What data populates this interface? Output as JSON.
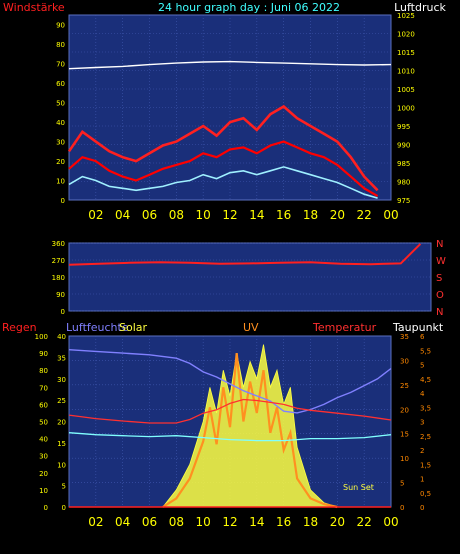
{
  "header": {
    "left_label": "Windstärke",
    "title": "24 hour graph day : Juni 06 2022",
    "right_label": "Luftdruck"
  },
  "colors": {
    "plot_bg": "#1a2f7a",
    "grid": "#4058b0",
    "wind": "#ff0000",
    "gust": "#ff2020",
    "wind_avg": "#9ff0ff",
    "pressure": "#ffffff",
    "direction": "#ff2020",
    "rain": "#ff2020",
    "humidity": "#8080ff",
    "temperature": "#ff3030",
    "dewpoint": "#80ffff",
    "solar": "#ffff40",
    "uv": "#ff9020",
    "axis_text": "#ffff00"
  },
  "chart_data": [
    {
      "type": "line",
      "name": "wind_pressure",
      "x_ticks": [
        "02",
        "04",
        "06",
        "08",
        "10",
        "12",
        "14",
        "16",
        "18",
        "20",
        "22",
        "00"
      ],
      "left_axis": {
        "label": "Windstärke",
        "ticks": [
          "0",
          "10",
          "20",
          "30",
          "40",
          "50",
          "60",
          "70",
          "80",
          "90"
        ],
        "ylim": [
          0,
          95
        ]
      },
      "right_axis": {
        "label": "Luftdruck",
        "ticks": [
          "975",
          "980",
          "985",
          "990",
          "995",
          "1000",
          "1005",
          "1010",
          "1015",
          "1020",
          "1025"
        ],
        "ylim": [
          975,
          1025
        ]
      },
      "series": [
        {
          "role": "pressure",
          "x": [
            0,
            2,
            4,
            6,
            8,
            10,
            12,
            14,
            16,
            18,
            20,
            22,
            24
          ],
          "values": [
            1010.5,
            1010.8,
            1011.1,
            1011.6,
            1012.0,
            1012.3,
            1012.4,
            1012.2,
            1012.0,
            1011.8,
            1011.6,
            1011.5,
            1011.6
          ]
        },
        {
          "role": "gust",
          "x": [
            0,
            1,
            2,
            3,
            4,
            5,
            6,
            7,
            8,
            9,
            10,
            11,
            12,
            13,
            14,
            15,
            16,
            17,
            18,
            19,
            20,
            21,
            22,
            23
          ],
          "values": [
            25,
            35,
            30,
            25,
            22,
            20,
            24,
            28,
            30,
            34,
            38,
            33,
            40,
            42,
            36,
            44,
            48,
            42,
            38,
            34,
            30,
            22,
            12,
            5
          ]
        },
        {
          "role": "wind",
          "x": [
            0,
            1,
            2,
            3,
            4,
            5,
            6,
            7,
            8,
            9,
            10,
            11,
            12,
            13,
            14,
            15,
            16,
            17,
            18,
            19,
            20,
            21,
            22,
            23
          ],
          "values": [
            16,
            22,
            20,
            15,
            12,
            10,
            13,
            16,
            18,
            20,
            24,
            22,
            26,
            27,
            24,
            28,
            30,
            27,
            24,
            22,
            18,
            12,
            6,
            2
          ]
        },
        {
          "role": "wind_avg",
          "x": [
            0,
            1,
            2,
            3,
            4,
            5,
            6,
            7,
            8,
            9,
            10,
            11,
            12,
            13,
            14,
            15,
            16,
            17,
            18,
            19,
            20,
            21,
            22,
            23
          ],
          "values": [
            8,
            12,
            10,
            7,
            6,
            5,
            6,
            7,
            9,
            10,
            13,
            11,
            14,
            15,
            13,
            15,
            17,
            15,
            13,
            11,
            9,
            6,
            3,
            1
          ]
        }
      ]
    },
    {
      "type": "scatter",
      "name": "wind_direction",
      "x_ticks": [],
      "left_axis": {
        "ticks": [
          "0",
          "90",
          "180",
          "270",
          "360"
        ],
        "ylim": [
          0,
          360
        ]
      },
      "right_axis": {
        "ticks": [
          "N",
          "W",
          "S",
          "O",
          "N"
        ]
      },
      "series": [
        {
          "role": "direction",
          "x": [
            0,
            2,
            4,
            6,
            8,
            10,
            12,
            14,
            16,
            18,
            20,
            22,
            23.3
          ],
          "values": [
            245,
            250,
            255,
            258,
            255,
            250,
            252,
            255,
            258,
            250,
            248,
            252,
            355
          ]
        }
      ]
    },
    {
      "type": "line",
      "name": "temperature_humidity_solar",
      "x_ticks": [
        "02",
        "04",
        "06",
        "08",
        "10",
        "12",
        "14",
        "16",
        "18",
        "20",
        "22",
        "00"
      ],
      "labels": {
        "rain": "Regen",
        "humidity": "Luftfeuchte",
        "solar": "Solar",
        "uv": "UV",
        "temperature": "Temperatur",
        "dewpoint": "Taupunkt",
        "sunset": "Sun Set"
      },
      "axes": {
        "humidity": {
          "ticks": [
            "0",
            "10",
            "20",
            "30",
            "40",
            "50",
            "60",
            "70",
            "80",
            "90",
            "100"
          ],
          "ylim": [
            0,
            100
          ]
        },
        "temperature": {
          "ticks": [
            "0",
            "5",
            "10",
            "15",
            "20",
            "25",
            "30",
            "35"
          ],
          "ylim": [
            0,
            35
          ]
        },
        "rain": {
          "ticks": [
            "0",
            "5",
            "10",
            "15",
            "20",
            "25",
            "30",
            "35",
            "40"
          ],
          "ylim": [
            0,
            40
          ]
        },
        "uv": {
          "ticks": [
            "0",
            "0,5",
            "1",
            "1,5",
            "2",
            "2,5",
            "3",
            "3,5",
            "4",
            "4,5",
            "5",
            "5,5",
            "6"
          ],
          "ylim": [
            0,
            6
          ]
        }
      },
      "series": [
        {
          "role": "humidity",
          "x": [
            0,
            2,
            4,
            6,
            8,
            9,
            10,
            11,
            12,
            13,
            14,
            15,
            16,
            17,
            18,
            19,
            20,
            21,
            22,
            23,
            24
          ],
          "values": [
            92,
            91,
            90,
            89,
            87,
            84,
            79,
            76,
            72,
            68,
            65,
            62,
            56,
            55,
            57,
            60,
            64,
            67,
            71,
            75,
            81
          ]
        },
        {
          "role": "temperature",
          "x": [
            0,
            2,
            4,
            6,
            8,
            9,
            10,
            11,
            12,
            13,
            14,
            15,
            16,
            17,
            18,
            20,
            22,
            24
          ],
          "values": [
            18.8,
            18.1,
            17.6,
            17.2,
            17.2,
            17.9,
            19.2,
            19.9,
            21.2,
            22.0,
            21.8,
            21.4,
            21.0,
            20.2,
            19.8,
            19.2,
            18.6,
            17.8
          ]
        },
        {
          "role": "dewpoint",
          "x": [
            0,
            2,
            4,
            6,
            8,
            10,
            12,
            14,
            16,
            18,
            20,
            22,
            24
          ],
          "values": [
            15.2,
            14.8,
            14.6,
            14.4,
            14.6,
            14.2,
            13.8,
            13.6,
            13.6,
            14.0,
            14.0,
            14.2,
            14.8
          ]
        },
        {
          "role": "rain",
          "x": [
            0,
            24
          ],
          "values": [
            0,
            0
          ]
        },
        {
          "role": "solar",
          "x": [
            7,
            8,
            9,
            10,
            10.5,
            11,
            11.5,
            12,
            12.5,
            13,
            13.5,
            14,
            14.5,
            15,
            15.5,
            16,
            16.5,
            17,
            18,
            19,
            20
          ],
          "values": [
            0,
            4,
            10,
            20,
            28,
            22,
            32,
            26,
            36,
            28,
            34,
            30,
            38,
            28,
            32,
            24,
            28,
            14,
            4,
            1,
            0
          ]
        },
        {
          "role": "uv",
          "x": [
            7,
            8,
            9,
            10,
            10.5,
            11,
            11.5,
            12,
            12.5,
            13,
            13.5,
            14,
            14.5,
            15,
            15.5,
            16,
            16.5,
            17,
            18,
            19,
            20
          ],
          "values": [
            0,
            0.3,
            1.0,
            2.3,
            3.5,
            2.2,
            4.2,
            2.8,
            5.4,
            3.0,
            4.4,
            3.3,
            4.8,
            2.6,
            3.5,
            2.0,
            2.6,
            1.0,
            0.3,
            0.1,
            0
          ]
        }
      ]
    }
  ]
}
